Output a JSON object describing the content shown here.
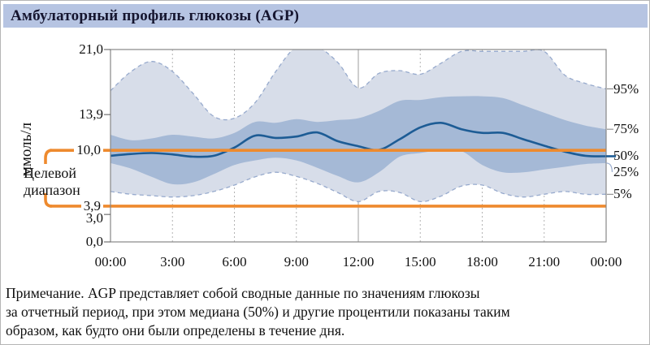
{
  "header": {
    "title": "Амбулаторный профиль глюкозы (AGP)"
  },
  "target_range": {
    "label_lines": [
      "Целевой",
      "диапазон"
    ],
    "upper_label": "10,0",
    "lower_label": "3,9"
  },
  "note": {
    "lines": [
      "Примечание. AGP представляет собой сводные данные по значениям глюкозы",
      "за отчетный период, при этом медиана (50%) и другие процентили показаны таким",
      "образом, как будто они были определены в течение дня."
    ]
  },
  "chart_data": {
    "type": "area",
    "title": "Амбулаторный профиль глюкозы (AGP)",
    "ylabel": "ммоль/л",
    "ylim": [
      0,
      21
    ],
    "x_unit": "hours",
    "x_range": [
      0,
      24
    ],
    "grid": "vertical-only",
    "x_ticks": [
      {
        "hour": 0,
        "label": "00:00"
      },
      {
        "hour": 3,
        "label": "3:00",
        "grid": "dashed"
      },
      {
        "hour": 6,
        "label": "6:00",
        "grid": "dashed"
      },
      {
        "hour": 9,
        "label": "9:00",
        "grid": "dashed"
      },
      {
        "hour": 12,
        "label": "12:00",
        "grid": "solid"
      },
      {
        "hour": 15,
        "label": "15:00",
        "grid": "dashed"
      },
      {
        "hour": 18,
        "label": "18:00",
        "grid": "dashed"
      },
      {
        "hour": 21,
        "label": "21:00",
        "grid": "dashed"
      },
      {
        "hour": 24,
        "label": "00:00"
      }
    ],
    "y_ticks": [
      {
        "value": 21.0,
        "label": "21,0",
        "tick": true
      },
      {
        "value": 13.9,
        "label": "13,9",
        "tick": true
      },
      {
        "value": 10.0,
        "label": "10,0",
        "on_target_line": true
      },
      {
        "value": 3.9,
        "label": "3,9",
        "on_target_line": true
      },
      {
        "value": 3.0,
        "label": "3,0",
        "tick": true,
        "dy": 5
      },
      {
        "value": 0.0,
        "label": "0,0",
        "tick": true
      }
    ],
    "target_lines": [
      {
        "value": 10.0
      },
      {
        "value": 3.9
      }
    ],
    "series": [
      {
        "name": "95%",
        "percentile": 95,
        "connector": "tick",
        "values": [
          16.5,
          18.6,
          19.7,
          18.6,
          16.2,
          13.7,
          13.5,
          15.2,
          18.6,
          21.3,
          21.3,
          19.6,
          16.8,
          18.4,
          18.7,
          18.3,
          19.5,
          20.8,
          20.8,
          20.8,
          20.8,
          20.8,
          18.2,
          17.3,
          16.7
        ]
      },
      {
        "name": "75%",
        "percentile": 75,
        "connector": "tick",
        "values": [
          11.7,
          11.1,
          11.3,
          11.7,
          11.5,
          11.3,
          11.9,
          13.1,
          13.0,
          13.4,
          13.1,
          13.3,
          13.5,
          14.3,
          15.4,
          15.5,
          15.8,
          15.9,
          15.9,
          15.7,
          14.9,
          14.1,
          13.3,
          12.7,
          12.3
        ]
      },
      {
        "name": "50%",
        "percentile": 50,
        "connector": "median",
        "values": [
          9.4,
          9.6,
          9.7,
          9.55,
          9.3,
          9.4,
          10.3,
          11.6,
          11.35,
          11.5,
          11.95,
          11.0,
          10.45,
          10.05,
          11.2,
          12.5,
          13.0,
          12.3,
          11.9,
          11.9,
          11.2,
          10.5,
          9.85,
          9.4,
          9.35
        ]
      },
      {
        "name": "25%",
        "percentile": 25,
        "connector": "curve",
        "label_dy": 11,
        "values": [
          8.6,
          8.0,
          7.1,
          6.3,
          6.5,
          7.4,
          8.4,
          8.9,
          9.2,
          8.9,
          8.1,
          7.2,
          6.5,
          7.6,
          9.3,
          9.7,
          10.0,
          9.9,
          8.4,
          7.6,
          7.6,
          7.9,
          8.2,
          8.5,
          8.6
        ]
      },
      {
        "name": "5%",
        "percentile": 5,
        "connector": "tick",
        "values": [
          5.5,
          5.2,
          5.05,
          4.9,
          5.05,
          5.5,
          6.2,
          7.1,
          7.6,
          7.15,
          6.4,
          5.4,
          4.4,
          5.5,
          5.4,
          4.4,
          5.0,
          6.1,
          6.2,
          5.3,
          4.9,
          5.2,
          5.5,
          5.2,
          5.2
        ]
      }
    ],
    "colors": {
      "band_outer": "#d7dde9",
      "band_outer_edge": "#97aacd",
      "band_inner": "#a5b9d6",
      "median": "#1d5c95",
      "target_line": "#ee8a2e",
      "grid_dashed": "#b3b3b3",
      "grid_solid": "#9d9d9d",
      "plot_border": "#878787",
      "axis_tick": "#555555",
      "banner_bg": "#b6c4e2",
      "title_text": "#15152f"
    }
  }
}
